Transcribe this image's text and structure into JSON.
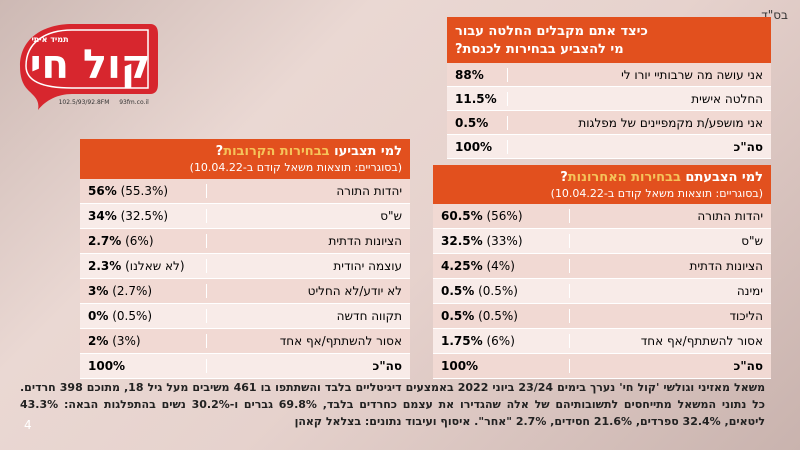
{
  "header_note": "בס\"ד",
  "logo": {
    "brand": "קול חי",
    "slogan": "תמיד איתי",
    "freq": "102.5/93/92.8FM",
    "site": "93fm.co.il"
  },
  "decision": {
    "title_line1": "כיצד אתם מקבלים החלטה עבור",
    "title_line2": "מי להצביע בבחירות לכנסת?",
    "rows": [
      {
        "label": "אני עושה מה שרבותיי יורו לי",
        "value": "88%"
      },
      {
        "label": "החלטה אישית",
        "value": "11.5%"
      },
      {
        "label": "אני מושפע/ת מקמפיינים של מפלגות",
        "value": "0.5%"
      }
    ],
    "total_label": "סה\"כ",
    "total_value": "100%"
  },
  "next_vote": {
    "title_pre": "למי תצביעו ",
    "title_hl": "בבחירות הקרובות",
    "title_post": "?",
    "subtitle": "(בסוגריים: תוצאות משאל קודם ב-10.04.22)",
    "rows": [
      {
        "label": "יהדות התורה",
        "value": "56%",
        "prev": "(55.3%)"
      },
      {
        "label": "ש\"ס",
        "value": "34%",
        "prev": "(32.5%)"
      },
      {
        "label": "הציונות הדתית",
        "value": "2.7%",
        "prev": "(6%)"
      },
      {
        "label": "עוצמה יהודית",
        "value": "2.3%",
        "prev": "(לא שאלנו)"
      },
      {
        "label": "לא יודע/לא החליט",
        "value": "3%",
        "prev": "(2.7%)"
      },
      {
        "label": "תקווה חדשה",
        "value": "0%",
        "prev": "(0.5%)"
      },
      {
        "label": "אסור להשתתף/אף אחד",
        "value": "2%",
        "prev": "(3%)"
      }
    ],
    "total_label": "סה\"כ",
    "total_value": "100%"
  },
  "last_vote": {
    "title_pre": "למי הצבעתם ",
    "title_hl": "בבחירות האחרונות",
    "title_post": "?",
    "subtitle": "(בסוגריים: תוצאות משאל קודם ב-10.04.22)",
    "rows": [
      {
        "label": "יהדות התורה",
        "value": "60.5%",
        "prev": "(56%)"
      },
      {
        "label": "ש\"ס",
        "value": "32.5%",
        "prev": "(33%)"
      },
      {
        "label": "הציונות הדתית",
        "value": "4.25%",
        "prev": "(4%)"
      },
      {
        "label": "ימינה",
        "value": "0.5%",
        "prev": "(0.5%)"
      },
      {
        "label": "הליכוד",
        "value": "0.5%",
        "prev": "(0.5%)"
      },
      {
        "label": "אסור להשתתף/אף אחד",
        "value": "1.75%",
        "prev": "(6%)"
      }
    ],
    "total_label": "סה\"כ",
    "total_value": "100%"
  },
  "footer": "משאל מאזיני וגולשי 'קול חי' נערך בימים 23/24 ביוני 2022 באמצעים דיגיטליים בלבד והשתתפו בו 461 משיבים מעל גיל 18, מתוכם 398 חרדים. כל נתוני המשאל מתייחסים לתשובותיהם של אלה שהגדירו את עצמם כחרדים בלבד, 69.8% גברים ו-30.2% נשים בהתפלגות הבאה: 43.3% ליטאים, 32.4% ספרדים, 21.6% חסידים, 2.7% \"אחר\". איסוף ועיבוד נתונים: בצלאל קאהן",
  "page_number": "4",
  "colors": {
    "accent": "#e2501e",
    "highlight": "#f5c35a",
    "row_dark": "#f1d9d3",
    "row_light": "#f8ebe8"
  }
}
